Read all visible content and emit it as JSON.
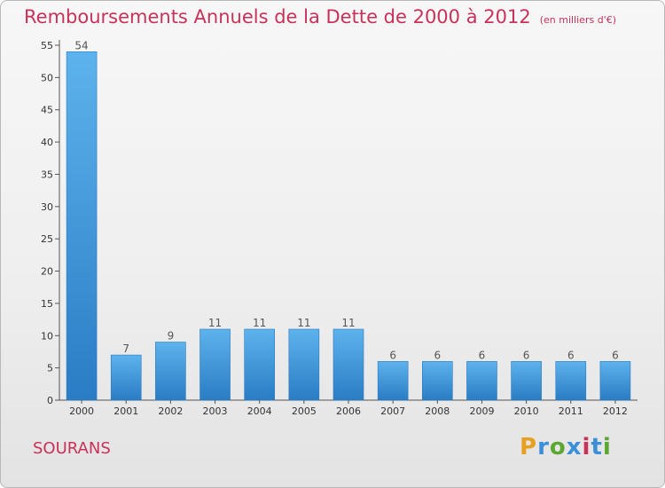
{
  "chart_data": {
    "type": "bar",
    "title": "Remboursements Annuels de la Dette de 2000 à 2012",
    "subtitle": "(en milliers d'€)",
    "categories": [
      "2000",
      "2001",
      "2002",
      "2003",
      "2004",
      "2005",
      "2006",
      "2007",
      "2008",
      "2009",
      "2010",
      "2011",
      "2012"
    ],
    "values": [
      54,
      7,
      9,
      11,
      11,
      11,
      11,
      6,
      6,
      6,
      6,
      6,
      6
    ],
    "ylim": [
      0,
      55
    ],
    "yticks": [
      0,
      5,
      10,
      15,
      20,
      25,
      30,
      35,
      40,
      45,
      50,
      55
    ],
    "xlabel": "",
    "ylabel": "",
    "grid": false,
    "bar_color": "#3a8fd8"
  },
  "commune": "SOURANS",
  "logo": {
    "text": "Proxiti",
    "letters": [
      "P",
      "r",
      "o",
      "x",
      "i",
      "t",
      "i"
    ],
    "colors": [
      "#e8a020",
      "#3a8fd8",
      "#5aa832",
      "#3a8fd8",
      "#c8325a",
      "#3a8fd8",
      "#5aa832"
    ]
  }
}
